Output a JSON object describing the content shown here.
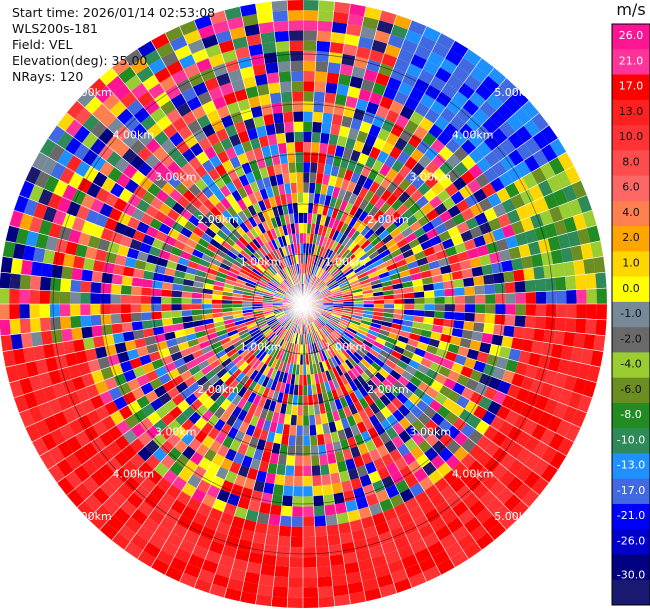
{
  "header": {
    "start_time": "Start time: 2026/01/14 02:53:08",
    "instrument": "WLS200s-181",
    "field": "Field: VEL",
    "elevation": "Elevation(deg): 35.00",
    "nrays": "NRays: 120"
  },
  "plot": {
    "range_ring_labels": [
      "1.00km",
      "2.00km",
      "3.00km",
      "4.00km",
      "5.00km"
    ],
    "n_rays": 120,
    "n_gates": 30
  },
  "colorbar": {
    "unit": "m/s",
    "ticks": [
      "26.0",
      "21.0",
      "17.0",
      "13.0",
      "10.0",
      "8.0",
      "6.0",
      "4.0",
      "2.0",
      "1.0",
      "0.0",
      "-1.0",
      "-2.0",
      "-4.0",
      "-6.0",
      "-8.0",
      "-10.0",
      "-13.0",
      "-17.0",
      "-21.0",
      "-26.0",
      "-30.0"
    ],
    "colors": [
      "#ff1493",
      "#ff3399",
      "#ff0000",
      "#ff2020",
      "#ff3333",
      "#ff4d4d",
      "#ff6666",
      "#ff7f50",
      "#ffa500",
      "#ffd700",
      "#ffff00",
      "#778899",
      "#696969",
      "#9acd32",
      "#6b8e23",
      "#228b22",
      "#2e8b57",
      "#1e90ff",
      "#4169e1",
      "#0000ff",
      "#0000cd",
      "#000080",
      "#191970"
    ]
  }
}
